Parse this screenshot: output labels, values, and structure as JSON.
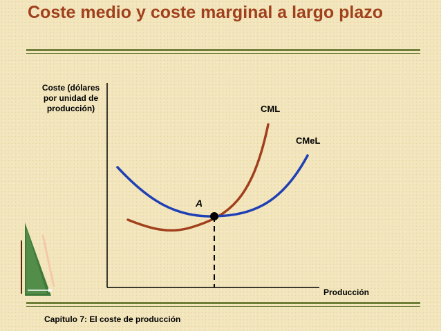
{
  "slide": {
    "title": "Coste medio y coste marginal a largo plazo",
    "footer": "Capítulo 7: El coste de producción"
  },
  "chart_data": {
    "type": "line",
    "title": "",
    "ylabel": "Coste (dólares por unidad de producción)",
    "xlabel": "Producción",
    "grid": false,
    "series": [
      {
        "name": "CML",
        "color": "#a0401c"
      },
      {
        "name": "CMeL",
        "color": "#1f3fb5"
      }
    ],
    "point": {
      "label": "A"
    }
  }
}
